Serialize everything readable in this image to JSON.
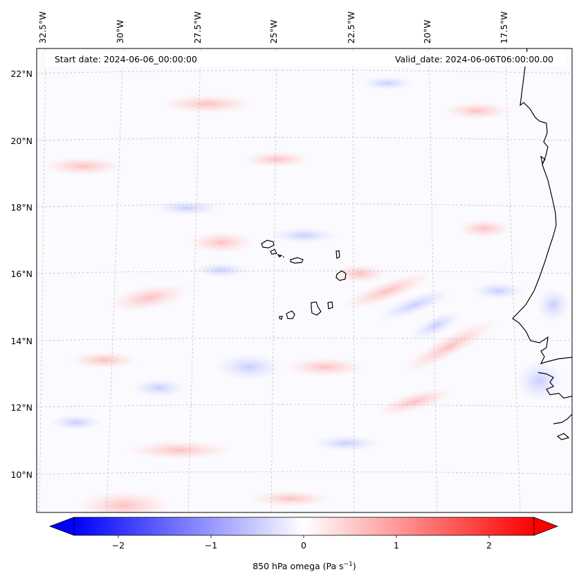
{
  "header": {
    "start_date": "Start date: 2024-06-06_00:00:00",
    "valid_date": "Valid_date: 2024-06-06T06:00:00.00"
  },
  "lon_labels": [
    "32.5°W",
    "30°W",
    "27.5°W",
    "25°W",
    "22.5°W",
    "20°W",
    "17.5°W"
  ],
  "lat_labels": [
    "22°N",
    "20°N",
    "18°N",
    "16°N",
    "14°N",
    "12°N",
    "10°N"
  ],
  "colorbar": {
    "label_main": "850 hPa omega (Pa s",
    "label_sup": "−1",
    "label_end": ")",
    "ticks": [
      "−2",
      "−1",
      "0",
      "1",
      "2"
    ],
    "min": -2.75,
    "max": 2.75,
    "colors": {
      "neg": "#0000ff",
      "mid": "#ffffff",
      "pos": "#ff0000"
    }
  },
  "colors": {
    "coastline": "#000000",
    "gridline": "#b0b0b0",
    "background": "#fbfbff"
  }
}
